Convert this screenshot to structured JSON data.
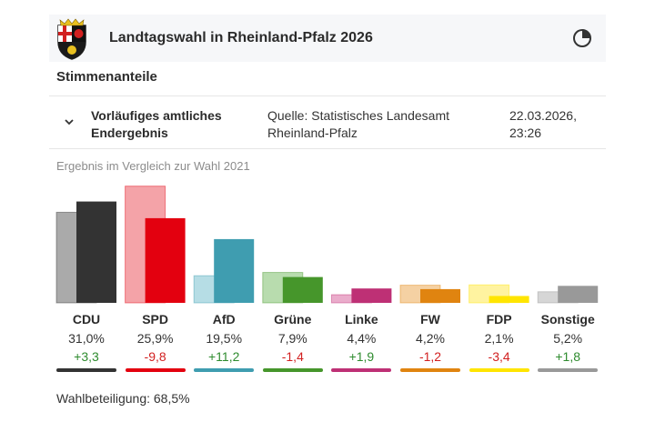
{
  "header": {
    "title": "Landtagswahl in Rheinland-Pfalz 2026",
    "icon": "pie-chart-icon"
  },
  "section_title": "Stimmenanteile",
  "status": {
    "label": "Vorläufiges amtliches Endergebnis",
    "source": "Quelle: Statistisches Landesamt Rheinland-Pfalz",
    "date": "22.03.2026, 23:26"
  },
  "compare_note": "Ergebnis im Vergleich zur Wahl 2021",
  "turnout": "Wahlbeteiligung: 68,5%",
  "colors": {
    "positive": "#2e8b2e",
    "negative": "#d22020"
  },
  "chart_data": {
    "type": "bar",
    "title": "Stimmenanteile",
    "subtitle": "Ergebnis im Vergleich zur Wahl 2021",
    "categories": [
      "CDU",
      "SPD",
      "AfD",
      "Grüne",
      "Linke",
      "FW",
      "FDP",
      "Sonstige"
    ],
    "series": [
      {
        "name": "2021",
        "values": [
          27.7,
          35.7,
          8.3,
          9.3,
          2.5,
          5.4,
          5.5,
          3.4
        ]
      },
      {
        "name": "2026",
        "values": [
          31.0,
          25.9,
          19.5,
          7.9,
          4.4,
          4.2,
          2.1,
          5.2
        ]
      }
    ],
    "value_labels": [
      "31,0%",
      "25,9%",
      "19,5%",
      "7,9%",
      "4,4%",
      "4,2%",
      "2,1%",
      "5,2%"
    ],
    "diff_labels": [
      "+3,3",
      "-9,8",
      "+11,2",
      "-1,4",
      "+1,9",
      "-1,2",
      "-3,4",
      "+1,8"
    ],
    "party_colors": [
      "#333333",
      "#e3000f",
      "#3f9db0",
      "#46962b",
      "#be3075",
      "#e08410",
      "#ffe500",
      "#999999"
    ],
    "previous_colors": [
      "#aaaaaa",
      "#f4a3a8",
      "#b6dde5",
      "#b8dcae",
      "#eaaccb",
      "#f5d1a3",
      "#fff3a0",
      "#d6d6d6"
    ],
    "ylim": [
      0,
      37
    ],
    "xlabel": "",
    "ylabel": ""
  }
}
